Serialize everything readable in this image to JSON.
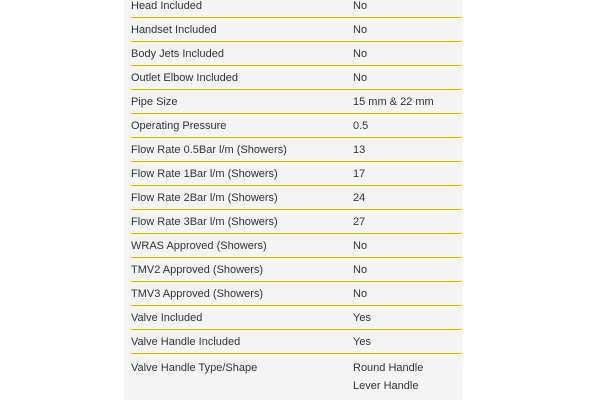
{
  "specs": [
    {
      "label": "Head Included",
      "value": "No"
    },
    {
      "label": "Handset Included",
      "value": "No"
    },
    {
      "label": "Body Jets Included",
      "value": "No"
    },
    {
      "label": "Outlet Elbow Included",
      "value": "No"
    },
    {
      "label": "Pipe Size",
      "value": "15 mm & 22 mm"
    },
    {
      "label": "Operating Pressure",
      "value": "0.5"
    },
    {
      "label": "Flow Rate 0.5Bar l/m (Showers)",
      "value": "13"
    },
    {
      "label": "Flow Rate 1Bar l/m (Showers)",
      "value": "17"
    },
    {
      "label": "Flow Rate 2Bar l/m (Showers)",
      "value": "24"
    },
    {
      "label": "Flow Rate 3Bar l/m (Showers)",
      "value": "27"
    },
    {
      "label": "WRAS Approved (Showers)",
      "value": "No"
    },
    {
      "label": "TMV2 Approved (Showers)",
      "value": "No"
    },
    {
      "label": "TMV3 Approved (Showers)",
      "value": "No"
    },
    {
      "label": "Valve Included",
      "value": "Yes"
    },
    {
      "label": "Valve Handle Included",
      "value": "Yes"
    }
  ],
  "last_spec": {
    "label": "Valve Handle Type/Shape",
    "values": [
      "Round Handle",
      "Lever Handle"
    ]
  },
  "colors": {
    "divider": "#e8b400",
    "panel_bg": "#f4f4f4"
  }
}
